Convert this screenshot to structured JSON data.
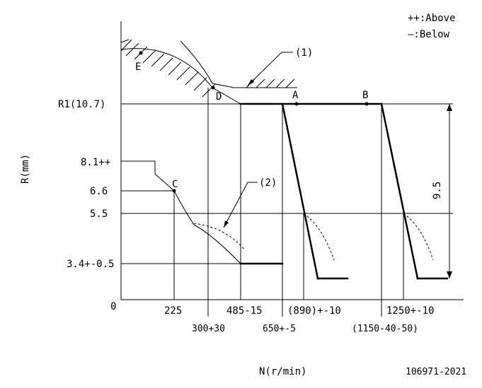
{
  "legend": {
    "above": "++:Above",
    "below": "—:Below"
  },
  "callouts": {
    "c1": "(1)",
    "c2": "(2)"
  },
  "points": {
    "a": "A",
    "b": "B",
    "c": "C",
    "d": "D",
    "e": "E"
  },
  "y_labels": {
    "r1": "R1(10.7)",
    "v81": "8.1++",
    "v66": "6.6",
    "v55": "5.5",
    "v34": "3.4+-0.5",
    "zero": "0"
  },
  "y_axis_title": "R(mm)",
  "x_labels": {
    "x225": "225",
    "x300": "300+30",
    "x485": "485-15",
    "x650": "650+-5",
    "x890": "(890)+-10",
    "x1150": "(1150-40-50)",
    "x1250": "1250+-10"
  },
  "x_axis_title": "N(r/min)",
  "dimension": "9.5",
  "doc_number": "106971-2021"
}
